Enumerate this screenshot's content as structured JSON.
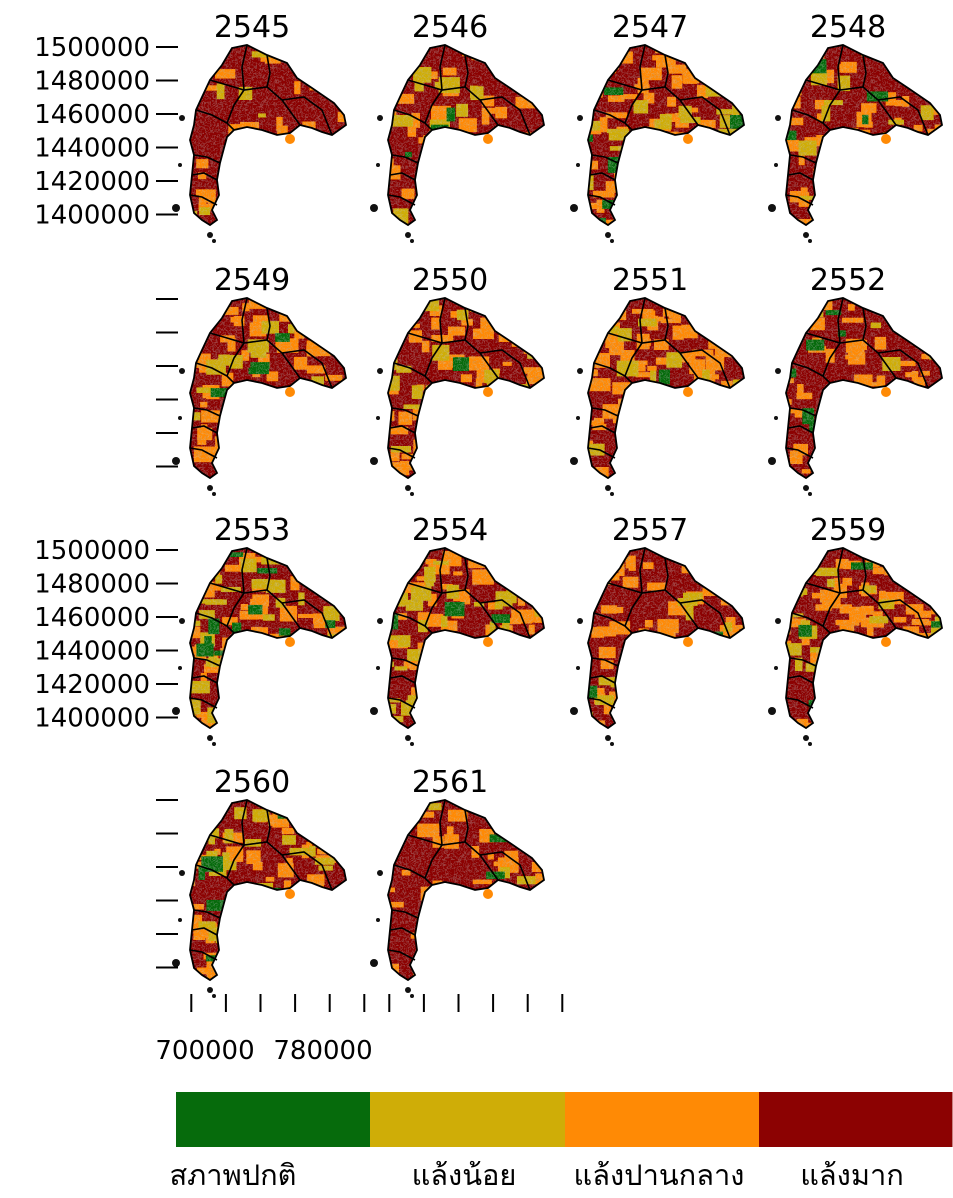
{
  "panels": [
    {
      "year": "2545",
      "levels": {
        "normal": 0.02,
        "mild": 0.05,
        "moderate": 0.18,
        "severe": 0.75
      }
    },
    {
      "year": "2546",
      "levels": {
        "normal": 0.05,
        "mild": 0.08,
        "moderate": 0.27,
        "severe": 0.6
      }
    },
    {
      "year": "2547",
      "levels": {
        "normal": 0.06,
        "mild": 0.22,
        "moderate": 0.47,
        "severe": 0.25
      }
    },
    {
      "year": "2548",
      "levels": {
        "normal": 0.03,
        "mild": 0.1,
        "moderate": 0.37,
        "severe": 0.5
      }
    },
    {
      "year": "2549",
      "levels": {
        "normal": 0.06,
        "mild": 0.14,
        "moderate": 0.45,
        "severe": 0.35
      }
    },
    {
      "year": "2550",
      "levels": {
        "normal": 0.03,
        "mild": 0.15,
        "moderate": 0.6,
        "severe": 0.22
      }
    },
    {
      "year": "2551",
      "levels": {
        "normal": 0.03,
        "mild": 0.12,
        "moderate": 0.55,
        "severe": 0.3
      }
    },
    {
      "year": "2552",
      "levels": {
        "normal": 0.08,
        "mild": 0.1,
        "moderate": 0.37,
        "severe": 0.45
      }
    },
    {
      "year": "2553",
      "levels": {
        "normal": 0.12,
        "mild": 0.33,
        "moderate": 0.4,
        "severe": 0.15
      }
    },
    {
      "year": "2554",
      "levels": {
        "normal": 0.05,
        "mild": 0.25,
        "moderate": 0.55,
        "severe": 0.15
      }
    },
    {
      "year": "2557",
      "levels": {
        "normal": 0.04,
        "mild": 0.08,
        "moderate": 0.38,
        "severe": 0.5
      }
    },
    {
      "year": "2559",
      "levels": {
        "normal": 0.05,
        "mild": 0.18,
        "moderate": 0.55,
        "severe": 0.22
      }
    },
    {
      "year": "2560",
      "levels": {
        "normal": 0.06,
        "mild": 0.22,
        "moderate": 0.5,
        "severe": 0.22
      }
    },
    {
      "year": "2561",
      "levels": {
        "normal": 0.02,
        "mild": 0.06,
        "moderate": 0.22,
        "severe": 0.7
      }
    }
  ],
  "y_axis": {
    "ticks": [
      "1500000",
      "1480000",
      "1460000",
      "1440000",
      "1420000",
      "1400000"
    ]
  },
  "x_axis": {
    "ticks": [
      "700000",
      "780000"
    ]
  },
  "legend": {
    "items": [
      {
        "label": "สภาพปกติ",
        "color": "#066b0c"
      },
      {
        "label": "แล้งน้อย",
        "color": "#cfad07"
      },
      {
        "label": "แล้งปานกลาง",
        "color": "#ff8a05"
      },
      {
        "label": "แล้งมาก",
        "color": "#8c0202"
      }
    ]
  },
  "colors": {
    "outline": "#000000",
    "background": "#ffffff"
  }
}
